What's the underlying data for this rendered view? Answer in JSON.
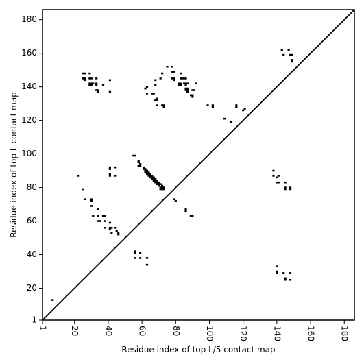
{
  "chart_data": {
    "type": "scatter",
    "xlabel": "Residue index of top L/5 contact map",
    "ylabel": "Residue index of top L contact map",
    "xlim": [
      1,
      186
    ],
    "ylim": [
      1,
      186
    ],
    "xticks": [
      1,
      20,
      40,
      60,
      80,
      100,
      120,
      140,
      160,
      180
    ],
    "yticks": [
      1,
      20,
      40,
      60,
      80,
      100,
      120,
      140,
      160,
      180
    ],
    "diagonal": true,
    "marker": "square",
    "marker_color": "#000000",
    "series": [
      {
        "name": "",
        "points": [
          [
            7,
            13
          ],
          [
            22,
            87
          ],
          [
            25,
            79
          ],
          [
            26,
            73
          ],
          [
            30,
            73
          ],
          [
            30,
            72
          ],
          [
            30,
            69
          ],
          [
            31,
            63
          ],
          [
            34,
            67
          ],
          [
            34,
            63
          ],
          [
            34,
            60
          ],
          [
            35,
            60
          ],
          [
            37,
            63
          ],
          [
            38,
            63
          ],
          [
            38,
            60
          ],
          [
            38,
            56
          ],
          [
            41,
            59
          ],
          [
            41,
            56
          ],
          [
            41,
            55
          ],
          [
            42,
            56
          ],
          [
            42,
            53
          ],
          [
            44,
            56
          ],
          [
            45,
            54
          ],
          [
            46,
            53
          ],
          [
            46,
            52
          ],
          [
            41,
            92
          ],
          [
            41,
            91
          ],
          [
            41,
            88
          ],
          [
            41,
            87
          ],
          [
            44,
            92
          ],
          [
            44,
            87
          ],
          [
            55,
            99
          ],
          [
            56,
            99
          ],
          [
            58,
            96
          ],
          [
            58,
            95
          ],
          [
            59,
            94
          ],
          [
            59,
            93
          ],
          [
            58,
            93
          ],
          [
            61,
            92
          ],
          [
            61,
            91
          ],
          [
            62,
            91
          ],
          [
            62,
            90
          ],
          [
            62,
            89
          ],
          [
            63,
            90
          ],
          [
            63,
            89
          ],
          [
            63,
            88
          ],
          [
            64,
            89
          ],
          [
            64,
            88
          ],
          [
            64,
            87
          ],
          [
            65,
            88
          ],
          [
            65,
            87
          ],
          [
            65,
            86
          ],
          [
            66,
            87
          ],
          [
            66,
            86
          ],
          [
            66,
            85
          ],
          [
            67,
            86
          ],
          [
            67,
            85
          ],
          [
            67,
            84
          ],
          [
            68,
            85
          ],
          [
            68,
            84
          ],
          [
            68,
            83
          ],
          [
            69,
            84
          ],
          [
            69,
            83
          ],
          [
            69,
            82
          ],
          [
            70,
            83
          ],
          [
            70,
            82
          ],
          [
            70,
            81
          ],
          [
            71,
            82
          ],
          [
            71,
            80
          ],
          [
            71,
            79
          ],
          [
            72,
            81
          ],
          [
            72,
            80
          ],
          [
            72,
            79
          ],
          [
            73,
            80
          ],
          [
            73,
            79
          ],
          [
            79,
            73
          ],
          [
            80,
            72
          ],
          [
            86,
            67
          ],
          [
            86,
            66
          ],
          [
            89,
            63
          ],
          [
            90,
            63
          ],
          [
            56,
            42
          ],
          [
            56,
            41
          ],
          [
            56,
            38
          ],
          [
            59,
            41
          ],
          [
            59,
            38
          ],
          [
            63,
            38
          ],
          [
            63,
            34
          ],
          [
            140,
            33
          ],
          [
            140,
            30
          ],
          [
            140,
            29
          ],
          [
            144,
            29
          ],
          [
            145,
            26
          ],
          [
            145,
            25
          ],
          [
            148,
            29
          ],
          [
            148,
            25
          ],
          [
            138,
            90
          ],
          [
            138,
            87
          ],
          [
            140,
            86
          ],
          [
            140,
            83
          ],
          [
            141,
            87
          ],
          [
            141,
            83
          ],
          [
            145,
            83
          ],
          [
            145,
            80
          ],
          [
            145,
            79
          ],
          [
            148,
            80
          ],
          [
            148,
            79
          ],
          [
            99,
            129
          ],
          [
            102,
            129
          ],
          [
            102,
            128
          ],
          [
            109,
            121
          ],
          [
            113,
            119
          ],
          [
            116,
            129
          ],
          [
            116,
            128
          ],
          [
            120,
            126
          ],
          [
            121,
            127
          ],
          [
            25,
            148
          ],
          [
            25,
            145
          ],
          [
            26,
            148
          ],
          [
            26,
            145
          ],
          [
            26,
            144
          ],
          [
            29,
            148
          ],
          [
            29,
            145
          ],
          [
            30,
            145
          ],
          [
            29,
            142
          ],
          [
            29,
            141
          ],
          [
            30,
            142
          ],
          [
            30,
            141
          ],
          [
            31,
            142
          ],
          [
            33,
            145
          ],
          [
            33,
            142
          ],
          [
            33,
            141
          ],
          [
            33,
            138
          ],
          [
            34,
            138
          ],
          [
            34,
            137
          ],
          [
            37,
            141
          ],
          [
            41,
            144
          ],
          [
            41,
            137
          ],
          [
            62,
            139
          ],
          [
            63,
            140
          ],
          [
            63,
            136
          ],
          [
            66,
            136
          ],
          [
            67,
            136
          ],
          [
            68,
            141
          ],
          [
            68,
            144
          ],
          [
            68,
            132
          ],
          [
            69,
            133
          ],
          [
            69,
            132
          ],
          [
            69,
            129
          ],
          [
            71,
            145
          ],
          [
            72,
            148
          ],
          [
            72,
            129
          ],
          [
            73,
            129
          ],
          [
            73,
            128
          ],
          [
            75,
            152
          ],
          [
            78,
            152
          ],
          [
            78,
            149
          ],
          [
            79,
            149
          ],
          [
            78,
            145
          ],
          [
            79,
            145
          ],
          [
            79,
            144
          ],
          [
            82,
            141
          ],
          [
            82,
            142
          ],
          [
            83,
            142
          ],
          [
            83,
            141
          ],
          [
            83,
            145
          ],
          [
            83,
            148
          ],
          [
            84,
            145
          ],
          [
            85,
            145
          ],
          [
            85,
            142
          ],
          [
            86,
            142
          ],
          [
            86,
            141
          ],
          [
            86,
            145
          ],
          [
            86,
            139
          ],
          [
            86,
            138
          ],
          [
            87,
            139
          ],
          [
            87,
            138
          ],
          [
            87,
            137
          ],
          [
            87,
            142
          ],
          [
            89,
            135
          ],
          [
            90,
            135
          ],
          [
            90,
            134
          ],
          [
            90,
            138
          ],
          [
            91,
            138
          ],
          [
            92,
            142
          ],
          [
            143,
            162
          ],
          [
            144,
            159
          ],
          [
            147,
            162
          ],
          [
            148,
            159
          ],
          [
            149,
            159
          ],
          [
            149,
            156
          ],
          [
            149,
            155
          ]
        ]
      }
    ]
  }
}
